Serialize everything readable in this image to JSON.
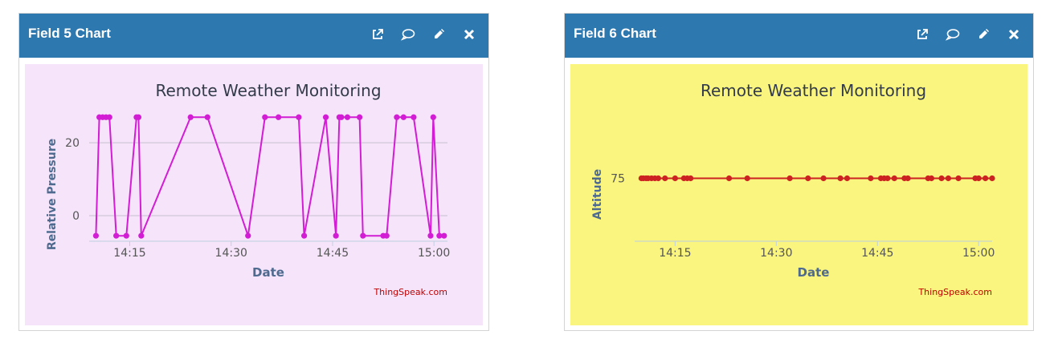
{
  "widgets": [
    {
      "title": "Field 5 Chart",
      "bg": "#f5e4fa",
      "line_color": "#d21dd4",
      "icons": [
        "external-link-icon",
        "comment-icon",
        "edit-icon",
        "close-icon"
      ]
    },
    {
      "title": "Field 6 Chart",
      "bg": "#f9f57e",
      "line_color": "#cc2222",
      "icons": [
        "external-link-icon",
        "comment-icon",
        "edit-icon",
        "close-icon"
      ]
    }
  ],
  "colors": {
    "header": "#2e78b0",
    "credit": "#c00000",
    "axis_title": "#4f6a8f"
  },
  "chart_data": [
    {
      "type": "line",
      "title": "Remote Weather Monitoring",
      "xlabel": "Date",
      "ylabel": "Relative Pressure",
      "credit": "ThingSpeak.com",
      "x_ticks": [
        "14:15",
        "14:30",
        "14:45",
        "15:00"
      ],
      "y_ticks": [
        "0",
        "20"
      ],
      "xlim": [
        "14:09",
        "15:02"
      ],
      "ylim": [
        -7,
        27.5
      ],
      "grid": true,
      "series": [
        {
          "x": [
            "14:10",
            "14:10.5",
            "14:11",
            "14:11.5",
            "14:12",
            "14:13",
            "14:14.5",
            "14:16",
            "14:16.3",
            "14:16.7",
            "14:24",
            "14:26.5",
            "14:32.5",
            "14:35",
            "14:37",
            "14:40",
            "14:40.8",
            "14:44",
            "14:45.5",
            "14:46",
            "14:46.3",
            "14:47.2",
            "14:49",
            "14:49.5",
            "14:52.5",
            "14:53",
            "14:54.5",
            "14:55.5",
            "14:57",
            "14:59.5",
            "14:59.9",
            "15:00.8",
            "15:01.5"
          ],
          "y": [
            -5.5,
            27,
            27,
            27,
            27,
            -5.5,
            -5.5,
            27,
            27,
            -5.5,
            27,
            27,
            -5.5,
            27,
            27,
            27,
            -5.5,
            27,
            -5.5,
            27,
            27,
            27,
            27,
            -5.5,
            -5.5,
            -5.5,
            27,
            27,
            27,
            -5.5,
            27,
            -5.5,
            -5.5
          ]
        }
      ]
    },
    {
      "type": "line",
      "title": "Remote Weather Monitoring",
      "xlabel": "Date",
      "ylabel": "Altitude",
      "credit": "ThingSpeak.com",
      "x_ticks": [
        "14:15",
        "14:30",
        "14:45",
        "15:00"
      ],
      "y_ticks": [
        "75"
      ],
      "xlim": [
        "14:09",
        "15:02"
      ],
      "ylim": [
        70,
        80
      ],
      "grid": false,
      "series": [
        {
          "x": [
            "14:10",
            "14:10.3",
            "14:10.7",
            "14:11",
            "14:11.5",
            "14:12",
            "14:12.5",
            "14:13.5",
            "14:15",
            "14:16.3",
            "14:16.8",
            "14:17.3",
            "14:23",
            "14:25.7",
            "14:32",
            "14:34.7",
            "14:37",
            "14:39.5",
            "14:40.5",
            "14:44",
            "14:45.5",
            "14:46",
            "14:46.5",
            "14:47.5",
            "14:49",
            "14:49.5",
            "14:52.5",
            "14:53",
            "14:54.5",
            "14:55.5",
            "14:57",
            "14:59.5",
            "15:00",
            "15:01",
            "15:02"
          ],
          "y": [
            75,
            75,
            75,
            75,
            75,
            75,
            75,
            75,
            75,
            75,
            75,
            75,
            75,
            75,
            75,
            75,
            75,
            75,
            75,
            75,
            75,
            75,
            75,
            75,
            75,
            75,
            75,
            75,
            75,
            75,
            75,
            75,
            75,
            75,
            75
          ]
        }
      ]
    }
  ]
}
